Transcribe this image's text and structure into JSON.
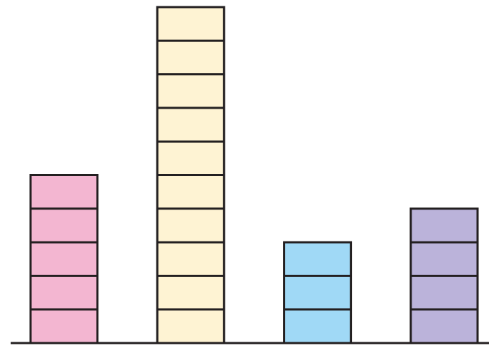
{
  "chart_data": {
    "type": "bar",
    "values": [
      5,
      10,
      3,
      4
    ],
    "colors": [
      "#f3b6d1",
      "#fef3d3",
      "#a0d9f6",
      "#bbb3da"
    ]
  }
}
